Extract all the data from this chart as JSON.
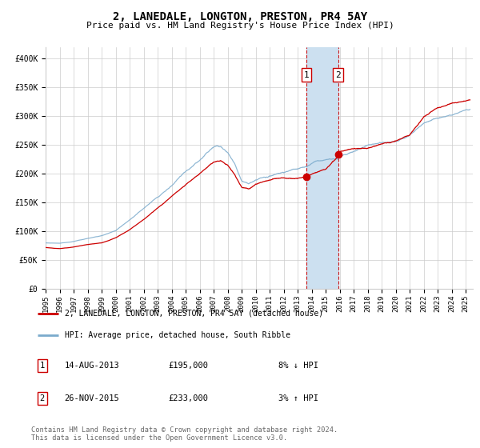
{
  "title": "2, LANEDALE, LONGTON, PRESTON, PR4 5AY",
  "subtitle": "Price paid vs. HM Land Registry's House Price Index (HPI)",
  "ylabel_ticks": [
    "£0",
    "£50K",
    "£100K",
    "£150K",
    "£200K",
    "£250K",
    "£300K",
    "£350K",
    "£400K"
  ],
  "ytick_vals": [
    0,
    50000,
    100000,
    150000,
    200000,
    250000,
    300000,
    350000,
    400000
  ],
  "ylim": [
    0,
    420000
  ],
  "xlim_start": 1995.0,
  "xlim_end": 2025.5,
  "sale1_date": 2013.62,
  "sale1_price": 195000,
  "sale2_date": 2015.9,
  "sale2_price": 233000,
  "shade_color": "#cce0f0",
  "line_color_red": "#cc0000",
  "line_color_blue": "#7aaacc",
  "point_color": "#cc0000",
  "dashed_color": "#cc0000",
  "grid_color": "#cccccc",
  "bg_color": "#ffffff",
  "legend_label_red": "2, LANEDALE, LONGTON, PRESTON, PR4 5AY (detached house)",
  "legend_label_blue": "HPI: Average price, detached house, South Ribble",
  "sale1_col1": "14-AUG-2013",
  "sale1_col2": "£195,000",
  "sale1_col3": "8% ↓ HPI",
  "sale2_col1": "26-NOV-2015",
  "sale2_col2": "£233,000",
  "sale2_col3": "3% ↑ HPI",
  "footnote1": "Contains HM Land Registry data © Crown copyright and database right 2024.",
  "footnote2": "This data is licensed under the Open Government Licence v3.0.",
  "xtick_years": [
    1995,
    1996,
    1997,
    1998,
    1999,
    2000,
    2001,
    2002,
    2003,
    2004,
    2005,
    2006,
    2007,
    2008,
    2009,
    2010,
    2011,
    2012,
    2013,
    2014,
    2015,
    2016,
    2017,
    2018,
    2019,
    2020,
    2021,
    2022,
    2023,
    2024,
    2025
  ]
}
